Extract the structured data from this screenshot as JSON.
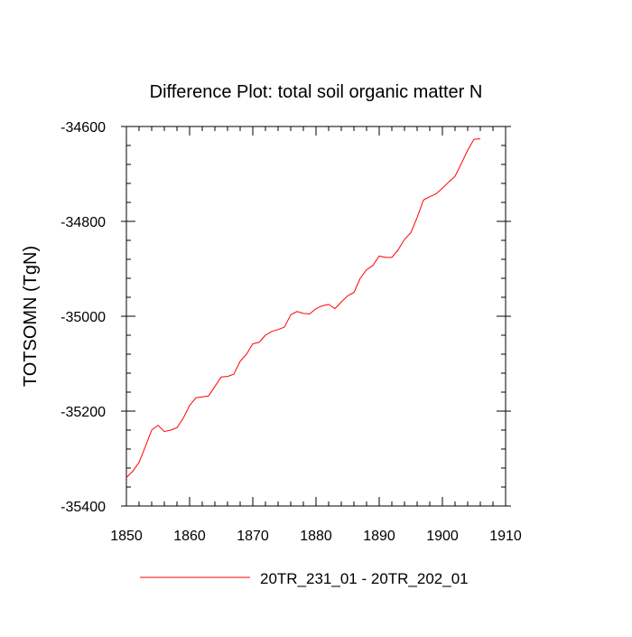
{
  "chart_data": {
    "type": "line",
    "title": "Difference Plot: total soil organic matter N",
    "xlabel": "",
    "ylabel": "TOTSOMN  (TgN)",
    "xlim": [
      1850,
      1910
    ],
    "ylim": [
      -35400,
      -34600
    ],
    "x_ticks": [
      1850,
      1860,
      1870,
      1880,
      1890,
      1900,
      1910
    ],
    "x_tick_labels": [
      "1850",
      "1860",
      "1870",
      "1880",
      "1890",
      "1900",
      "1910"
    ],
    "y_ticks": [
      -34600,
      -34800,
      -35000,
      -35200,
      -35400
    ],
    "y_tick_labels": [
      "-34600",
      "-34800",
      "-35000",
      "-35200",
      "-35400"
    ],
    "grid": false,
    "legend_position": "bottom-center",
    "series": [
      {
        "name": "20TR_231_01 - 20TR_202_01",
        "color": "#ff0000",
        "x": [
          1850,
          1851,
          1852,
          1853,
          1854,
          1855,
          1856,
          1857,
          1858,
          1859,
          1860,
          1861,
          1862,
          1863,
          1864,
          1865,
          1866,
          1867,
          1868,
          1869,
          1870,
          1871,
          1872,
          1873,
          1874,
          1875,
          1876,
          1877,
          1878,
          1879,
          1880,
          1881,
          1882,
          1883,
          1884,
          1885,
          1886,
          1887,
          1888,
          1889,
          1890,
          1891,
          1892,
          1893,
          1894,
          1895,
          1896,
          1897,
          1898,
          1899,
          1900,
          1901,
          1902,
          1903,
          1904,
          1905,
          1906
        ],
        "values": [
          -35340,
          -35327,
          -35308,
          -35275,
          -35240,
          -35230,
          -35243,
          -35240,
          -35235,
          -35215,
          -35188,
          -35172,
          -35170,
          -35168,
          -35148,
          -35128,
          -35127,
          -35122,
          -35095,
          -35080,
          -35058,
          -35055,
          -35040,
          -35032,
          -35028,
          -35023,
          -34997,
          -34990,
          -34994,
          -34995,
          -34984,
          -34978,
          -34975,
          -34984,
          -34970,
          -34957,
          -34950,
          -34920,
          -34902,
          -34893,
          -34873,
          -34876,
          -34876,
          -34860,
          -34838,
          -34824,
          -34792,
          -34755,
          -34748,
          -34742,
          -34730,
          -34717,
          -34705,
          -34678,
          -34650,
          -34627,
          -34626
        ]
      }
    ]
  }
}
